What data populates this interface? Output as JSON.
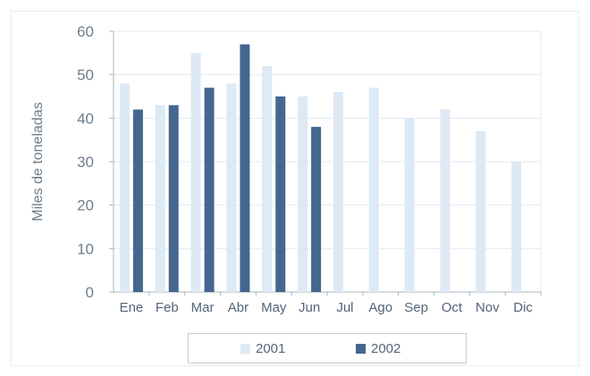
{
  "chart_data": {
    "type": "bar",
    "title": "",
    "xlabel": "",
    "ylabel": "Miles de toneladas",
    "ylim": [
      0,
      60
    ],
    "yticks": [
      "0",
      "10",
      "20",
      "30",
      "40",
      "50",
      "60"
    ],
    "grid": true,
    "legend_placement": "bottom",
    "categories": [
      "Ene",
      "Feb",
      "Mar",
      "Abr",
      "May",
      "Jun",
      "Jul",
      "Ago",
      "Sep",
      "Oct",
      "Nov",
      "Dic"
    ],
    "series": [
      {
        "name": "2001",
        "color": "#dde9f4",
        "values": [
          48,
          43,
          55,
          48,
          52,
          45,
          46,
          47,
          40,
          42,
          37,
          30
        ]
      },
      {
        "name": "2002",
        "color": "#44678f",
        "values": [
          42,
          43,
          47,
          57,
          45,
          38,
          null,
          null,
          null,
          null,
          null,
          null
        ]
      }
    ],
    "colors": {
      "grid": "#e6eaef",
      "axis": "#aab4bf"
    }
  }
}
